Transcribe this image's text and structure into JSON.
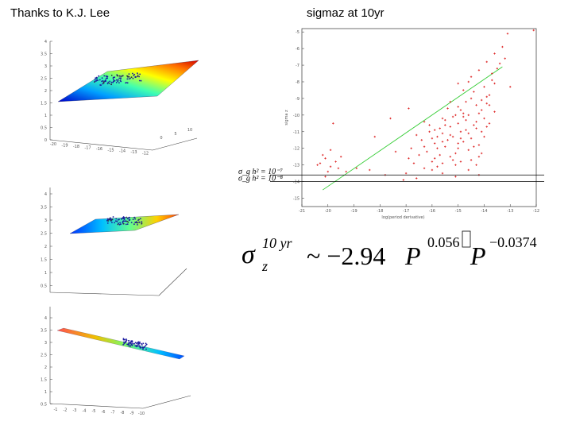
{
  "slide": {
    "credit": "Thanks to K.J. Lee",
    "plot_title": "sigmaz at 10yr"
  },
  "surface_plots": {
    "top": {
      "z_ticks": [
        "4",
        "3.5",
        "3",
        "2.5",
        "2",
        "1.5",
        "1",
        "0.5",
        "0"
      ],
      "x_ticks": [
        "-20",
        "-19",
        "-18",
        "-17",
        "-16",
        "-15",
        "-14",
        "-13",
        "-12"
      ],
      "y_ticks": [
        "0",
        "5",
        "10"
      ]
    },
    "middle": {
      "z_ticks": [
        "4",
        "3.5",
        "3",
        "2.5",
        "2",
        "1.5",
        "1",
        "0.5"
      ]
    },
    "bottom": {
      "z_ticks": [
        "4",
        "3.5",
        "3",
        "2.5",
        "2",
        "1.5",
        "1",
        "0.5"
      ],
      "x_ticks": [
        "-1",
        "-2",
        "-3",
        "-4",
        "-5",
        "-6",
        "-7",
        "-8",
        "-9",
        "-10"
      ]
    }
  },
  "chart_data": {
    "type": "scatter",
    "title": "sigmaz at 10yr",
    "xlabel": "log(period derivative)",
    "ylabel": "sigma z",
    "x_ticks": [
      "-21",
      "-20",
      "-19",
      "-18",
      "-17",
      "-16",
      "-15",
      "-14",
      "-13",
      "-12"
    ],
    "y_ticks": [
      "-5",
      "-6",
      "-7",
      "-8",
      "-9",
      "-10",
      "-11",
      "-12",
      "-13",
      "-14",
      "-15"
    ],
    "xlim": [
      -21,
      -12
    ],
    "ylim": [
      -15.5,
      -4.8
    ],
    "fit_line": {
      "x": [
        -20.2,
        -13.3
      ],
      "y": [
        -14.5,
        -7.1
      ],
      "color": "#33cc33"
    },
    "reference_lines": [
      {
        "label": "σ_g h² = 10⁻⁷",
        "y": -13.6
      },
      {
        "label": "σ_g h² = 10⁻⁸",
        "y": -14.0
      }
    ],
    "point_color": "#dd2222",
    "series": [
      {
        "points": [
          [
            -15.0,
            -10.5
          ],
          [
            -14.8,
            -9.9
          ],
          [
            -15.3,
            -11.2
          ],
          [
            -14.6,
            -10.0
          ],
          [
            -15.6,
            -11.6
          ],
          [
            -14.3,
            -9.4
          ],
          [
            -15.2,
            -10.1
          ],
          [
            -14.9,
            -11.0
          ],
          [
            -15.8,
            -12.0
          ],
          [
            -14.4,
            -10.6
          ],
          [
            -15.5,
            -10.3
          ],
          [
            -14.1,
            -9.1
          ],
          [
            -16.0,
            -11.4
          ],
          [
            -14.7,
            -10.9
          ],
          [
            -15.1,
            -12.3
          ],
          [
            -14.0,
            -10.2
          ],
          [
            -15.9,
            -12.6
          ],
          [
            -14.5,
            -11.4
          ],
          [
            -15.4,
            -9.6
          ],
          [
            -13.8,
            -8.8
          ],
          [
            -16.3,
            -11.9
          ],
          [
            -14.2,
            -11.8
          ],
          [
            -15.7,
            -10.8
          ],
          [
            -13.6,
            -9.8
          ],
          [
            -16.5,
            -12.4
          ],
          [
            -14.8,
            -8.5
          ],
          [
            -15.0,
            -11.7
          ],
          [
            -13.9,
            -10.7
          ],
          [
            -16.1,
            -10.6
          ],
          [
            -14.6,
            -12.1
          ],
          [
            -15.3,
            -9.2
          ],
          [
            -13.7,
            -7.9
          ],
          [
            -16.7,
            -12.9
          ],
          [
            -14.3,
            -10.4
          ],
          [
            -15.6,
            -11.1
          ],
          [
            -14.9,
            -9.7
          ],
          [
            -15.8,
            -11.3
          ],
          [
            -14.1,
            -11.0
          ],
          [
            -15.2,
            -12.7
          ],
          [
            -14.4,
            -8.6
          ],
          [
            -16.2,
            -12.2
          ],
          [
            -14.7,
            -10.3
          ],
          [
            -15.5,
            -11.9
          ],
          [
            -13.9,
            -9.3
          ],
          [
            -16.4,
            -11.5
          ],
          [
            -14.2,
            -12.5
          ],
          [
            -15.1,
            -10.0
          ],
          [
            -14.5,
            -9.0
          ],
          [
            -15.9,
            -10.9
          ],
          [
            -13.8,
            -10.5
          ],
          [
            -16.6,
            -11.2
          ],
          [
            -14.9,
            -12.8
          ],
          [
            -15.4,
            -11.5
          ],
          [
            -14.0,
            -8.3
          ],
          [
            -16.9,
            -12.6
          ],
          [
            -14.6,
            -11.1
          ],
          [
            -15.7,
            -12.4
          ],
          [
            -14.3,
            -10.8
          ],
          [
            -15.0,
            -9.5
          ],
          [
            -14.8,
            -11.6
          ],
          [
            -16.0,
            -12.8
          ],
          [
            -13.6,
            -8.1
          ],
          [
            -15.3,
            -10.7
          ],
          [
            -14.1,
            -9.7
          ],
          [
            -15.6,
            -12.9
          ],
          [
            -14.7,
            -9.2
          ],
          [
            -16.3,
            -10.4
          ],
          [
            -14.4,
            -11.9
          ],
          [
            -15.2,
            -11.3
          ],
          [
            -13.7,
            -7.5
          ],
          [
            -15.8,
            -13.1
          ],
          [
            -14.0,
            -11.3
          ],
          [
            -15.5,
            -10.6
          ],
          [
            -14.5,
            -12.7
          ],
          [
            -16.8,
            -12.0
          ],
          [
            -14.2,
            -9.9
          ],
          [
            -15.1,
            -13.0
          ],
          [
            -13.9,
            -8.9
          ],
          [
            -15.9,
            -11.7
          ],
          [
            -14.8,
            -10.1
          ],
          [
            -13.5,
            -7.2
          ],
          [
            -14.6,
            -8.0
          ],
          [
            -15.3,
            -12.5
          ],
          [
            -14.3,
            -13.0
          ],
          [
            -16.1,
            -11.0
          ],
          [
            -14.9,
            -11.4
          ],
          [
            -15.6,
            -10.2
          ],
          [
            -13.8,
            -9.4
          ],
          [
            -15.0,
            -12.0
          ],
          [
            -14.1,
            -12.3
          ],
          [
            -13.4,
            -6.9
          ],
          [
            -13.2,
            -6.6
          ],
          [
            -13.3,
            -5.9
          ],
          [
            -13.6,
            -6.3
          ],
          [
            -13.1,
            -5.1
          ],
          [
            -14.2,
            -7.3
          ],
          [
            -13.9,
            -6.8
          ],
          [
            -14.5,
            -7.7
          ],
          [
            -15.0,
            -8.1
          ],
          [
            -17.4,
            -12.2
          ],
          [
            -17.8,
            -13.6
          ],
          [
            -17.1,
            -13.9
          ],
          [
            -19.8,
            -10.5
          ],
          [
            -17.6,
            -10.2
          ],
          [
            -20.3,
            -12.9
          ],
          [
            -20.1,
            -12.6
          ],
          [
            -19.9,
            -13.1
          ],
          [
            -20.0,
            -13.4
          ],
          [
            -19.7,
            -12.8
          ],
          [
            -20.2,
            -12.4
          ],
          [
            -19.6,
            -13.2
          ],
          [
            -19.9,
            -12.1
          ],
          [
            -20.4,
            -13.0
          ],
          [
            -19.5,
            -12.5
          ],
          [
            -19.3,
            -13.4
          ],
          [
            -20.1,
            -13.7
          ],
          [
            -18.9,
            -13.2
          ],
          [
            -18.4,
            -13.3
          ],
          [
            -16.0,
            -13.3
          ],
          [
            -15.1,
            -13.7
          ],
          [
            -15.6,
            -13.5
          ],
          [
            -16.3,
            -13.2
          ],
          [
            -14.6,
            -13.3
          ],
          [
            -14.2,
            -13.6
          ],
          [
            -17.0,
            -13.5
          ],
          [
            -16.6,
            -13.8
          ],
          [
            -12.1,
            -4.9
          ],
          [
            -13.0,
            -8.3
          ],
          [
            -16.9,
            -9.6
          ],
          [
            -18.2,
            -11.3
          ]
        ]
      }
    ]
  },
  "formula": {
    "sigma": "σ",
    "sub_z": "z",
    "sup": "10 yr",
    "relation": "~ −2.94",
    "var_p1": "P",
    "exp1": "0.056",
    "var_p2": "P",
    "exp2": "−0.0374"
  }
}
